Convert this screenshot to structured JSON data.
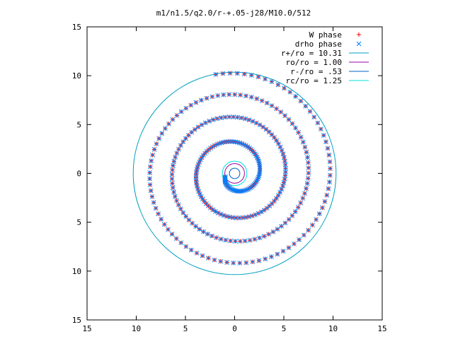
{
  "chart_data": {
    "type": "scatter",
    "title": "m1/n1.5/q2.0/r-+.05-j28/M10.0/512",
    "xlabel": "",
    "ylabel": "",
    "xlim": [
      -15,
      15
    ],
    "ylim": [
      -15,
      15
    ],
    "x_ticks": [
      -15,
      -10,
      -5,
      0,
      5,
      10,
      15
    ],
    "y_ticks": [
      -15,
      -10,
      -5,
      0,
      5,
      10,
      15
    ],
    "x_tick_labels": [
      "15",
      "10",
      "5",
      "0",
      "5",
      "10",
      "15"
    ],
    "y_tick_labels": [
      "15",
      "10",
      "5",
      "0",
      "5",
      "10",
      "15"
    ],
    "grid": false,
    "legend_position": "top-right",
    "aspect": "equal",
    "series": [
      {
        "name": "W phase",
        "kind": "points",
        "marker": "plus",
        "color": "#ff0000",
        "spiral": {
          "theta_start": 0,
          "theta_end": 23.4,
          "a": 0.0,
          "b": 0.42,
          "inner_radius": 1.0,
          "outer_radius": 10.31,
          "count": 330,
          "rotation_deg": 200
        }
      },
      {
        "name": "drho phase",
        "kind": "points",
        "marker": "cross",
        "color": "#0080ff",
        "spiral": {
          "theta_start": 0,
          "theta_end": 23.4,
          "a": 0.0,
          "b": 0.42,
          "inner_radius": 1.0,
          "outer_radius": 10.31,
          "count": 330,
          "rotation_deg": 200
        }
      },
      {
        "name": "r+/ro = 10.31",
        "kind": "circle",
        "radius": 10.31,
        "color": "#00a0c0"
      },
      {
        "name": "ro/ro = 1.00",
        "kind": "circle",
        "radius": 1.0,
        "color": "#a000a0"
      },
      {
        "name": "r-/ro = .53",
        "kind": "circle",
        "radius": 0.53,
        "color": "#0060c0"
      },
      {
        "name": "rc/ro = 1.25",
        "kind": "circle",
        "radius": 1.25,
        "color": "#00e0e0"
      }
    ]
  }
}
